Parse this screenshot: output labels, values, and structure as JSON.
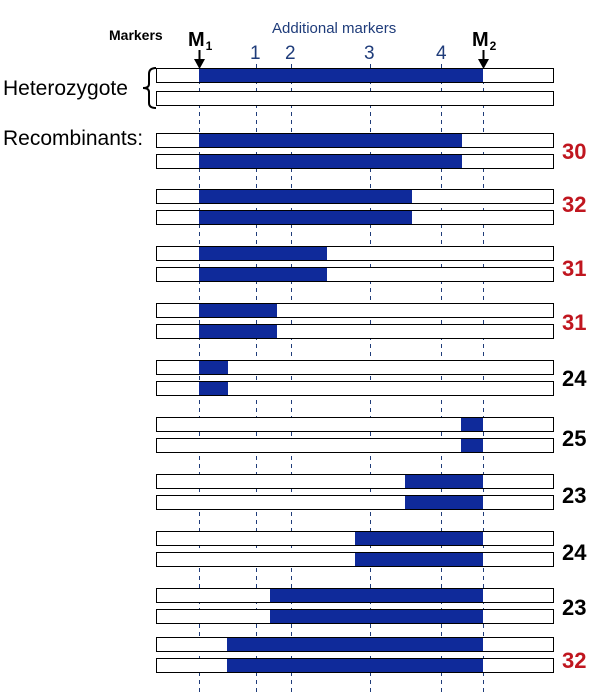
{
  "header": {
    "markers_label": "Markers",
    "additional_markers_label": "Additional markers",
    "m1": {
      "letter": "M",
      "sub": "1"
    },
    "m2": {
      "letter": "M",
      "sub": "2"
    },
    "additional_numbers": [
      "1",
      "2",
      "3",
      "4"
    ]
  },
  "heterozygote_label": "Heterozygote",
  "recombinants_label": "Recombinants:",
  "colors": {
    "segment": "#0f2a9a",
    "dashed_line": "#1f3c7a",
    "label_blue": "#1f3c7a",
    "red_count": "#c0161f",
    "black_count": "#000000"
  },
  "recombinants": [
    {
      "count": "30",
      "color": "red"
    },
    {
      "count": "32",
      "color": "red"
    },
    {
      "count": "31",
      "color": "red"
    },
    {
      "count": "31",
      "color": "red"
    },
    {
      "count": "24",
      "color": "black"
    },
    {
      "count": "25",
      "color": "black"
    },
    {
      "count": "23",
      "color": "black"
    },
    {
      "count": "24",
      "color": "black"
    },
    {
      "count": "23",
      "color": "black"
    },
    {
      "count": "32",
      "color": "red"
    }
  ]
}
